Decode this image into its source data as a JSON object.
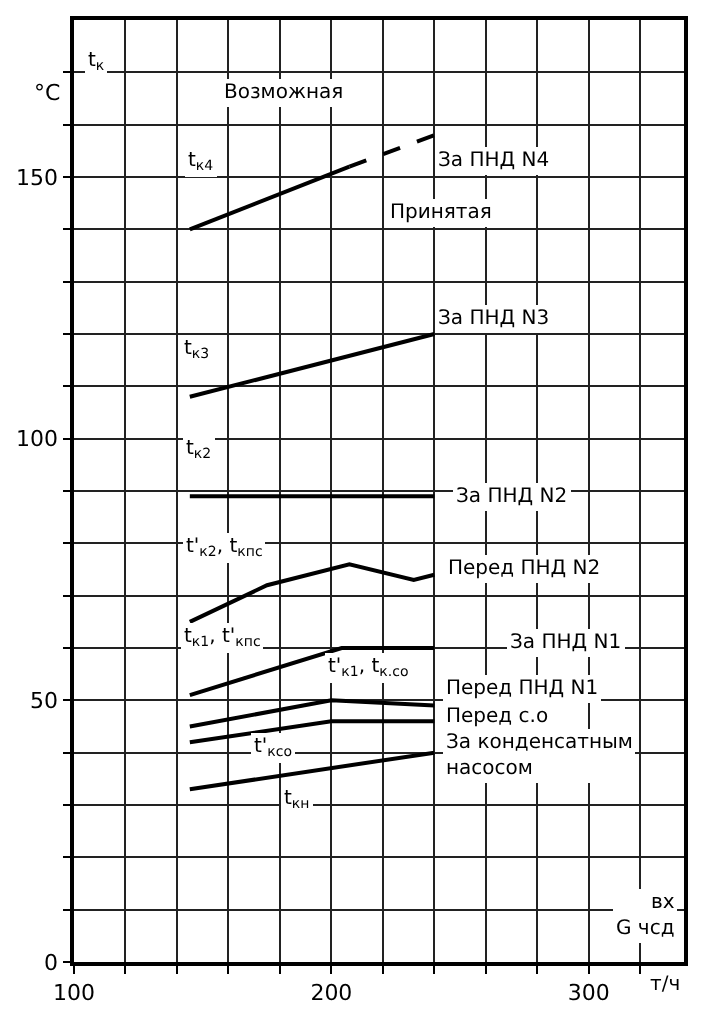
{
  "chart_data": {
    "type": "line",
    "ylabel": "°C",
    "xlabel": "вх\nG чсд",
    "xlim": [
      100,
      337
    ],
    "ylim": [
      0,
      180
    ],
    "xticks": [
      100,
      {
        "value": 120,
        "label": null
      },
      {
        "value": 140,
        "label": null
      },
      {
        "value": 160,
        "label": null
      },
      {
        "value": 180,
        "label": null
      },
      200,
      {
        "value": 220,
        "label": null
      },
      {
        "value": 240,
        "label": null
      },
      {
        "value": 260,
        "label": null
      },
      {
        "value": 280,
        "label": null
      },
      300,
      {
        "value": 320,
        "label": null
      }
    ],
    "yticks": [
      0,
      {
        "value": 10,
        "label": null
      },
      {
        "value": 20,
        "label": null
      },
      {
        "value": 30,
        "label": null
      },
      {
        "value": 40,
        "label": null
      },
      50,
      {
        "value": 60,
        "label": null
      },
      {
        "value": 70,
        "label": null
      },
      {
        "value": 80,
        "label": null
      },
      {
        "value": 90,
        "label": null
      },
      100,
      {
        "value": 110,
        "label": null
      },
      {
        "value": 120,
        "label": null
      },
      {
        "value": 130,
        "label": null
      },
      {
        "value": 140,
        "label": null
      },
      150,
      {
        "value": 160,
        "label": null
      },
      {
        "value": 170,
        "label": null
      }
    ],
    "grid": true,
    "marker": "none",
    "series": [
      {
        "color": "#000000",
        "x": [
          145,
          207
        ],
        "values": [
          140,
          152
        ],
        "line_style": "solid"
      },
      {
        "color": "#000000",
        "x": [
          207,
          240
        ],
        "values": [
          152,
          158
        ],
        "line_style": "dashed"
      },
      {
        "color": "#000000",
        "x": [
          145,
          240
        ],
        "values": [
          108,
          120
        ],
        "line_style": "solid"
      },
      {
        "color": "#000000",
        "x": [
          145,
          240
        ],
        "values": [
          89,
          89
        ],
        "line_style": "solid"
      },
      {
        "color": "#000000",
        "x": [
          145,
          175,
          207,
          232,
          240
        ],
        "values": [
          65,
          72,
          76,
          73,
          74
        ],
        "line_style": "solid"
      },
      {
        "color": "#000000",
        "x": [
          145,
          204,
          240
        ],
        "values": [
          51,
          60,
          60
        ],
        "line_style": "solid"
      },
      {
        "color": "#000000",
        "x": [
          145,
          200,
          240
        ],
        "values": [
          45,
          50,
          49
        ],
        "line_style": "solid"
      },
      {
        "color": "#000000",
        "x": [
          145,
          200,
          240
        ],
        "values": [
          42,
          46,
          46
        ],
        "line_style": "solid"
      },
      {
        "color": "#000000",
        "x": [
          145,
          240
        ],
        "values": [
          33,
          40
        ],
        "line_style": "solid"
      }
    ],
    "annotations": [
      "t$_{к}$",
      "Возможная",
      "Принятая",
      "За ПНД N4",
      "t$_{к4}$",
      "За ПНД N3",
      "t$_{к3}$",
      "t$_{к2}$",
      "За ПНД N2",
      "t'$_{к2}$, t$_{кпс}$",
      "Перед ПНД N2",
      "t$_{к1}$, t'$_{кпс}$",
      "За ПНД N1",
      "t'$_{к1}$, t$_{к.со}$",
      "Перед ПНД N1",
      "Перед с.о",
      "За конденсатным\nнасосом",
      "t'$_{ксо}$",
      "t$_{кн}$",
      "т/ч"
    ]
  }
}
